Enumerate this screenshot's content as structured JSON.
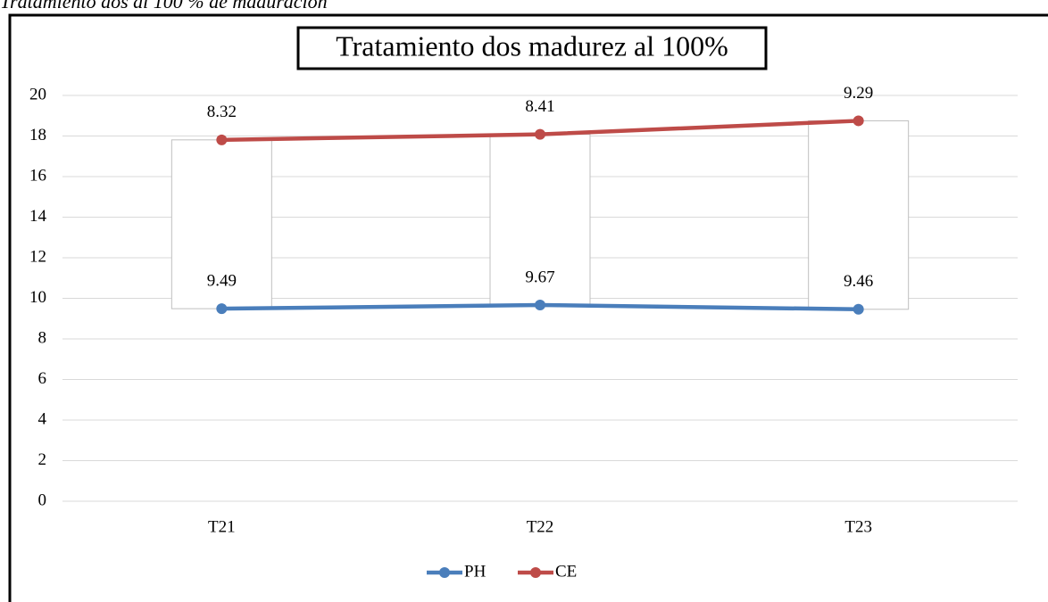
{
  "caption": "Tratamiento dos al 100 % de maduración",
  "chart_data": {
    "type": "line",
    "stacked": true,
    "up_down_bars": true,
    "title": "Tratamiento dos madurez al 100%",
    "categories": [
      "T21",
      "T22",
      "T23"
    ],
    "series": [
      {
        "name": "PH",
        "color": "#4a7ebb",
        "values": [
          9.49,
          9.67,
          9.46
        ]
      },
      {
        "name": "CE",
        "color": "#be4b48",
        "values": [
          8.32,
          8.41,
          9.29
        ]
      }
    ],
    "ylim": [
      0,
      20
    ],
    "yticks": [
      0,
      2,
      4,
      6,
      8,
      10,
      12,
      14,
      16,
      18,
      20
    ],
    "grid": true,
    "legend": "bottom"
  }
}
